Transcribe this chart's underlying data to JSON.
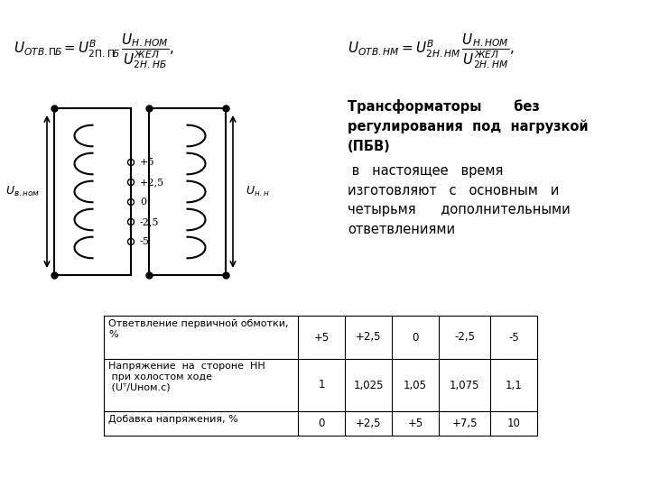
{
  "bg_color": "#ffffff",
  "fig_size": [
    7.2,
    5.4
  ],
  "dpi": 100,
  "tap_labels": [
    "+5",
    "+2,5",
    "0",
    "-2,5",
    "-5"
  ],
  "table_row1_values": [
    "+5",
    "+2,5",
    "0",
    "-2,5",
    "-5"
  ],
  "table_row2_values": [
    "1",
    "1,025",
    "1,05",
    "1,075",
    "1,1"
  ],
  "table_row3_values": [
    "0",
    "+2,5",
    "+5",
    "+7,5",
    "10"
  ]
}
